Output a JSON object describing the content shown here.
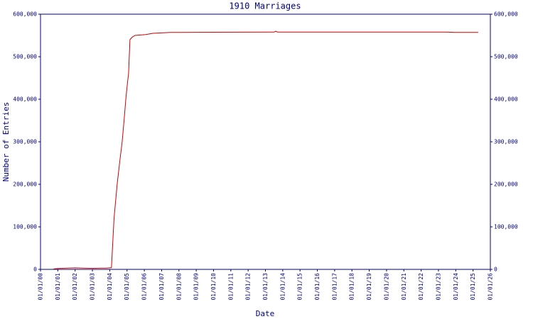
{
  "chart_data": {
    "type": "line",
    "title": "1910 Marriages",
    "x_label": "Date",
    "y_label": "Number of Entries",
    "x": [
      0.75,
      1.0,
      1.5,
      2.0,
      2.5,
      3.0,
      3.5,
      3.8,
      4.1,
      4.25,
      4.43,
      4.6,
      4.72,
      4.85,
      4.93,
      5.03,
      5.09,
      5.17,
      5.3,
      5.46,
      6.08,
      6.5,
      7.0,
      7.5,
      10.0,
      13.5,
      13.6,
      13.7,
      16.0,
      20.0,
      23.5,
      23.9,
      25.3
    ],
    "series": [
      {
        "name": "Entries",
        "color": "#cc0000",
        "values": [
          1000,
          2000,
          3000,
          3500,
          3000,
          2500,
          3000,
          3000,
          4000,
          120000,
          200000,
          260000,
          300000,
          360000,
          400000,
          440000,
          460000,
          540000,
          546000,
          550000,
          552000,
          555000,
          556000,
          557000,
          557500,
          558000,
          560000,
          558000,
          558000,
          558000,
          558000,
          557000,
          557000
        ]
      }
    ],
    "xlim": [
      0,
      26
    ],
    "xticks": [
      {
        "value": 0,
        "label": "01/01/00"
      },
      {
        "value": 1,
        "label": "01/01/01"
      },
      {
        "value": 2,
        "label": "01/01/02"
      },
      {
        "value": 3,
        "label": "01/01/03"
      },
      {
        "value": 4,
        "label": "01/01/04"
      },
      {
        "value": 5,
        "label": "01/01/05"
      },
      {
        "value": 6,
        "label": "01/01/06"
      },
      {
        "value": 7,
        "label": "01/01/07"
      },
      {
        "value": 8,
        "label": "01/01/08"
      },
      {
        "value": 9,
        "label": "01/01/09"
      },
      {
        "value": 10,
        "label": "01/01/10"
      },
      {
        "value": 11,
        "label": "01/01/11"
      },
      {
        "value": 12,
        "label": "01/01/12"
      },
      {
        "value": 13,
        "label": "01/01/13"
      },
      {
        "value": 14,
        "label": "01/01/14"
      },
      {
        "value": 15,
        "label": "01/01/15"
      },
      {
        "value": 16,
        "label": "01/01/16"
      },
      {
        "value": 17,
        "label": "01/01/17"
      },
      {
        "value": 18,
        "label": "01/01/18"
      },
      {
        "value": 19,
        "label": "01/01/19"
      },
      {
        "value": 20,
        "label": "01/01/20"
      },
      {
        "value": 21,
        "label": "01/01/21"
      },
      {
        "value": 22,
        "label": "01/01/22"
      },
      {
        "value": 23,
        "label": "01/01/23"
      },
      {
        "value": 24,
        "label": "01/01/24"
      },
      {
        "value": 25,
        "label": "01/01/25"
      },
      {
        "value": 26,
        "label": "01/01/26"
      }
    ],
    "ylim": [
      0,
      600000
    ],
    "yticks": [
      0,
      {
        "value": 100000,
        "label": "100,000"
      },
      {
        "value": 200000,
        "label": "200,000"
      },
      {
        "value": 300000,
        "label": "300,000"
      },
      {
        "value": 400000,
        "label": "400,000"
      },
      {
        "value": 500000,
        "label": "500,000"
      },
      {
        "value": 600000,
        "label": "600,000"
      }
    ],
    "y2lim": [
      0,
      600000
    ],
    "y2ticks": [
      0,
      {
        "value": 100000,
        "label": "100,000"
      },
      {
        "value": 200000,
        "label": "200,000"
      },
      {
        "value": 300000,
        "label": "300,000"
      },
      {
        "value": 400000,
        "label": "400,000"
      },
      {
        "value": 500000,
        "label": "500,000"
      },
      {
        "value": 600000,
        "label": "600,000"
      }
    ],
    "axis_color": "#000080",
    "grid": false
  }
}
